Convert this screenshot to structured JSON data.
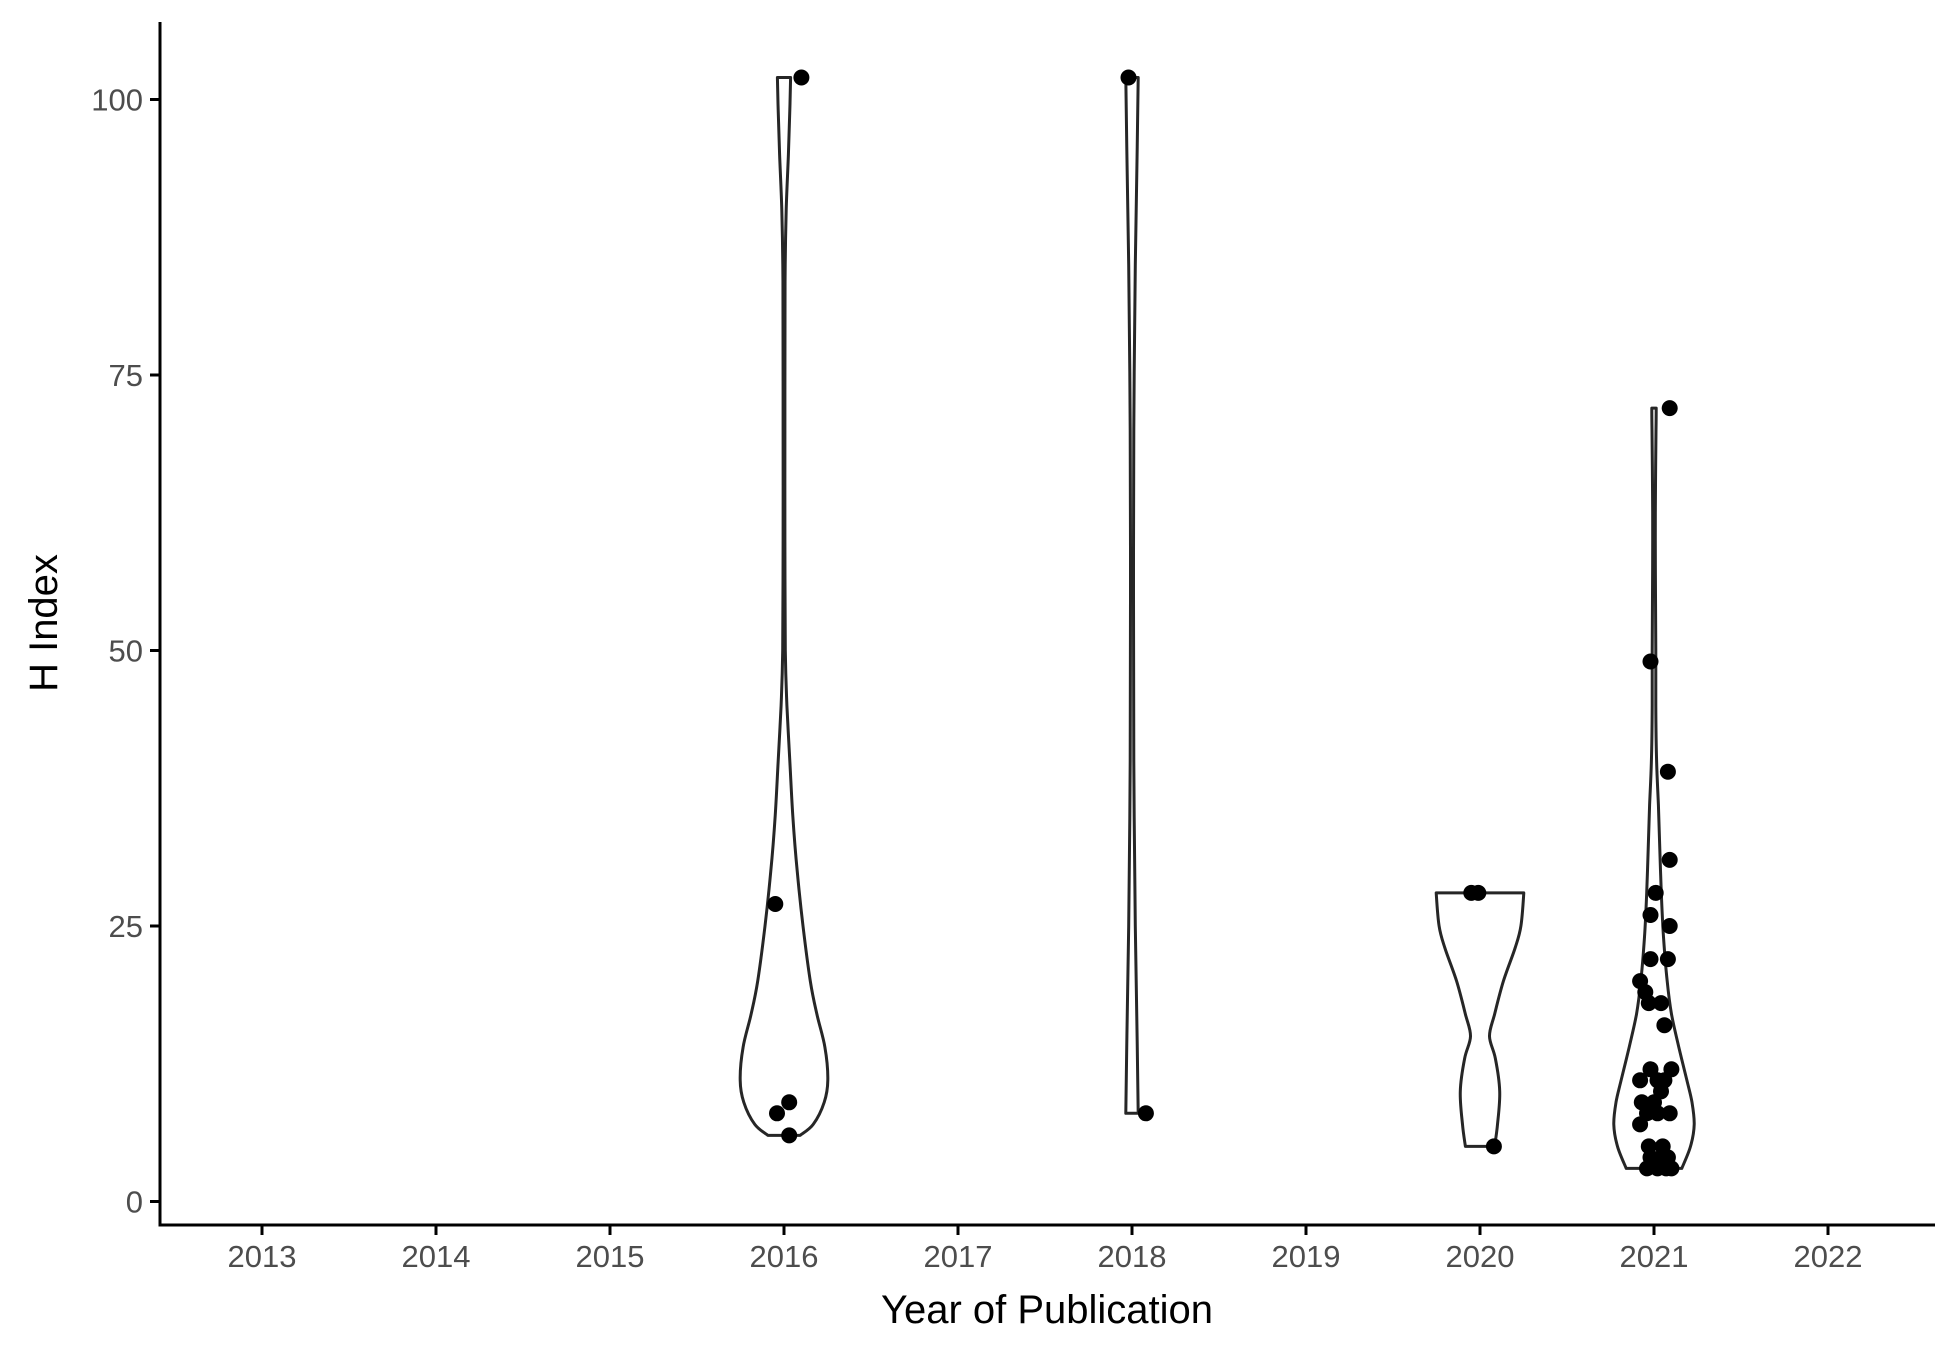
{
  "chart_data": {
    "type": "violin",
    "xlabel": "Year of Publication",
    "ylabel": "H Index",
    "x_categories": [
      "2013",
      "2014",
      "2015",
      "2016",
      "2017",
      "2018",
      "2019",
      "2020",
      "2021",
      "2022"
    ],
    "y_ticks": [
      0,
      25,
      50,
      75,
      100
    ],
    "ylim": [
      -2,
      107
    ],
    "grid": false,
    "legend": "none",
    "colors": {
      "outline": "#262626",
      "points": "#000000",
      "axis": "#000000",
      "tick_text": "#4d4d4d"
    },
    "groups": [
      {
        "year": "2016",
        "min": 6,
        "max": 102,
        "points": [
          102,
          27,
          9,
          8,
          6
        ],
        "jitter": [
          0.1,
          -0.05,
          0.03,
          -0.04,
          0.03
        ],
        "density_profile": [
          [
            6,
            0.22
          ],
          [
            7,
            0.4
          ],
          [
            9,
            0.55
          ],
          [
            11,
            0.6
          ],
          [
            14,
            0.56
          ],
          [
            17,
            0.45
          ],
          [
            20,
            0.36
          ],
          [
            25,
            0.26
          ],
          [
            30,
            0.18
          ],
          [
            35,
            0.12
          ],
          [
            40,
            0.08
          ],
          [
            45,
            0.04
          ],
          [
            50,
            0.018
          ],
          [
            60,
            0.012
          ],
          [
            70,
            0.012
          ],
          [
            80,
            0.013
          ],
          [
            85,
            0.016
          ],
          [
            90,
            0.03
          ],
          [
            95,
            0.06
          ],
          [
            99,
            0.08
          ],
          [
            102,
            0.09
          ]
        ]
      },
      {
        "year": "2018",
        "min": 8,
        "max": 102,
        "points": [
          102,
          8
        ],
        "jitter": [
          -0.02,
          0.08
        ],
        "density_profile": [
          [
            8,
            0.085
          ],
          [
            15,
            0.07
          ],
          [
            25,
            0.045
          ],
          [
            40,
            0.025
          ],
          [
            55,
            0.02
          ],
          [
            70,
            0.025
          ],
          [
            85,
            0.045
          ],
          [
            95,
            0.07
          ],
          [
            102,
            0.085
          ]
        ]
      },
      {
        "year": "2020",
        "min": 5,
        "max": 28,
        "points": [
          28,
          28,
          5
        ],
        "jitter": [
          -0.05,
          -0.01,
          0.08
        ],
        "density_profile": [
          [
            5,
            0.2
          ],
          [
            7,
            0.24
          ],
          [
            10,
            0.27
          ],
          [
            13,
            0.21
          ],
          [
            15,
            0.13
          ],
          [
            17,
            0.2
          ],
          [
            20,
            0.32
          ],
          [
            23,
            0.48
          ],
          [
            25,
            0.56
          ],
          [
            28,
            0.6
          ]
        ]
      },
      {
        "year": "2021",
        "min": 3,
        "max": 72,
        "points": [
          72,
          49,
          39,
          31,
          28,
          26,
          25,
          22,
          22,
          20,
          19,
          18,
          18,
          16,
          12,
          12,
          11,
          11,
          11,
          10,
          9,
          9,
          8,
          8,
          8,
          7,
          5,
          5,
          4,
          4,
          4,
          3,
          3,
          3,
          3
        ],
        "jitter": [
          0.09,
          -0.02,
          0.08,
          0.09,
          0.01,
          -0.02,
          0.09,
          -0.02,
          0.08,
          -0.08,
          -0.05,
          -0.03,
          0.04,
          0.06,
          -0.02,
          0.1,
          -0.08,
          0.06,
          0.02,
          0.04,
          -0.07,
          0.0,
          -0.04,
          0.02,
          0.09,
          -0.08,
          -0.03,
          0.05,
          -0.02,
          0.04,
          0.08,
          -0.04,
          0.02,
          0.07,
          0.1
        ],
        "density_profile": [
          [
            3,
            0.38
          ],
          [
            5,
            0.5
          ],
          [
            7,
            0.55
          ],
          [
            9,
            0.52
          ],
          [
            11,
            0.45
          ],
          [
            14,
            0.34
          ],
          [
            17,
            0.24
          ],
          [
            20,
            0.18
          ],
          [
            24,
            0.13
          ],
          [
            28,
            0.1
          ],
          [
            32,
            0.08
          ],
          [
            36,
            0.06
          ],
          [
            40,
            0.035
          ],
          [
            45,
            0.025
          ],
          [
            50,
            0.025
          ],
          [
            55,
            0.02
          ],
          [
            60,
            0.018
          ],
          [
            65,
            0.02
          ],
          [
            70,
            0.028
          ],
          [
            72,
            0.03
          ]
        ]
      }
    ]
  }
}
